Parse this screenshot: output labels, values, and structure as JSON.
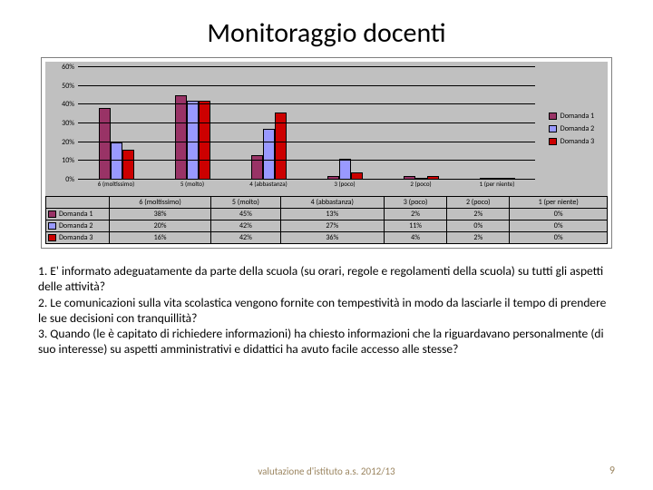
{
  "title": "Monitoraggio docenti",
  "chart": {
    "type": "bar",
    "background_color": "#c0c0c0",
    "grid_color": "#000000",
    "ylim": [
      0,
      60
    ],
    "ytick_step": 10,
    "yticks": [
      "0%",
      "10%",
      "20%",
      "30%",
      "40%",
      "50%",
      "60%"
    ],
    "categories": [
      "6 (moltissimo)",
      "5 (molto)",
      "4 (abbastanza)",
      "3 (poco)",
      "2 (poco)",
      "1 (per niente)"
    ],
    "series": [
      {
        "name": "Domanda 1",
        "color": "#993366",
        "values": [
          38,
          45,
          13,
          2,
          2,
          0
        ]
      },
      {
        "name": "Domanda 2",
        "color": "#9999ff",
        "values": [
          20,
          42,
          27,
          11,
          0,
          0
        ]
      },
      {
        "name": "Domanda 3",
        "color": "#cc0000",
        "values": [
          16,
          42,
          36,
          4,
          2,
          0
        ]
      }
    ],
    "bar_border_color": "#000000",
    "label_fontsize": 8
  },
  "table": {
    "row_labels": [
      "Domanda 1",
      "Domanda 2",
      "Domanda 3"
    ],
    "columns": [
      "6 (moltissimo)",
      "5 (molto)",
      "4 (abbastanza)",
      "3 (poco)",
      "2 (poco)",
      "1 (per niente)"
    ],
    "rows": [
      [
        "38%",
        "45%",
        "13%",
        "2%",
        "2%",
        "0%"
      ],
      [
        "20%",
        "42%",
        "27%",
        "11%",
        "0%",
        "0%"
      ],
      [
        "16%",
        "42%",
        "36%",
        "4%",
        "2%",
        "0%"
      ]
    ],
    "row_colors": [
      "#993366",
      "#9999ff",
      "#cc0000"
    ]
  },
  "questions": {
    "q1": "1. E'  informato adeguatamente da parte della scuola (su orari, regole e regolamenti della scuola) su tutti gli aspetti  delle attività?",
    "q2": " 2. Le comunicazioni sulla vita scolastica  vengono fornite con tempestività in modo da lasciarle  il tempo di prendere le sue decisioni  con tranquillità?",
    "q3": "3. Quando (le  è capitato di richiedere informazioni) ha chiesto informazioni che la riguardavano personalmente (di suo interesse) su  aspetti amministrativi e didattici  ha avuto facile accesso alle stesse? "
  },
  "footer": "valutazione d'istituto a.s. 2012/13",
  "page_number": "9"
}
